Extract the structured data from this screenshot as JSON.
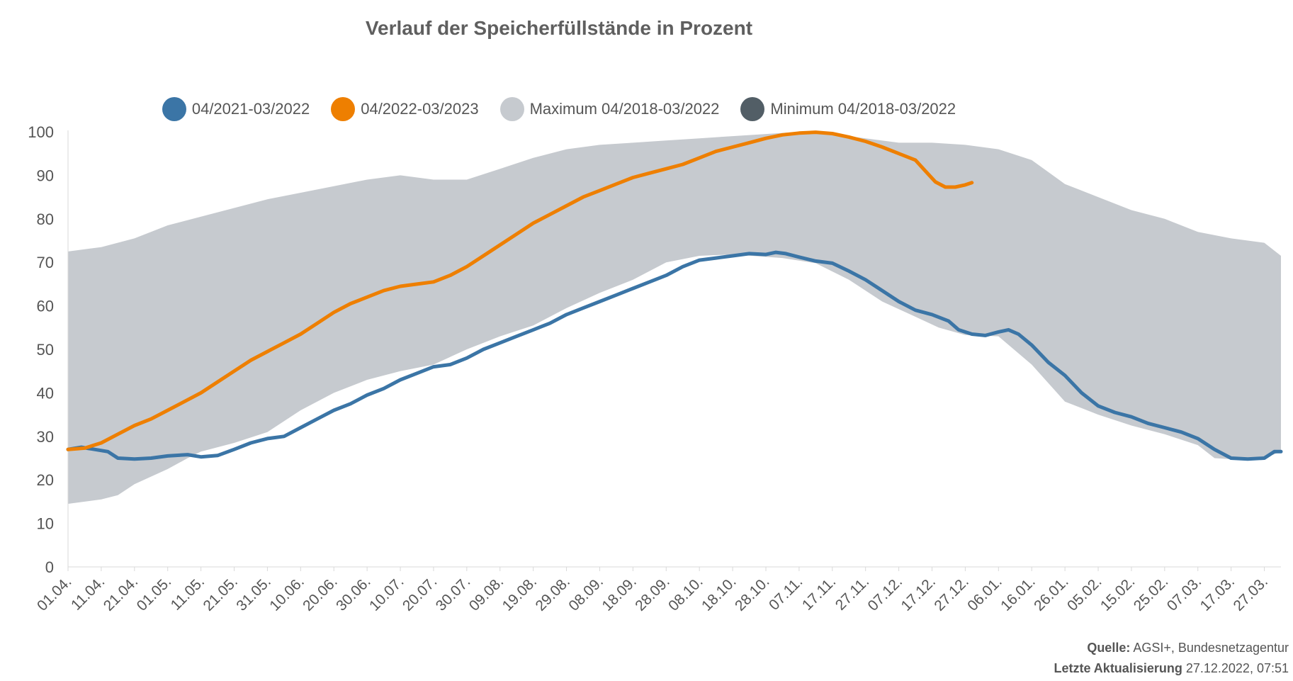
{
  "chart_data": {
    "type": "area",
    "title": "Verlauf der Speicherfüllstände in Prozent",
    "ylim": [
      0,
      100
    ],
    "yticks": [
      "0",
      "10",
      "20",
      "30",
      "40",
      "50",
      "60",
      "70",
      "80",
      "90",
      "100"
    ],
    "xticks": [
      "01.04.",
      "11.04.",
      "21.04.",
      "01.05.",
      "11.05.",
      "21.05.",
      "31.05.",
      "10.06.",
      "20.06.",
      "30.06.",
      "10.07.",
      "20.07.",
      "30.07.",
      "09.08.",
      "19.08.",
      "29.08.",
      "08.09.",
      "18.09.",
      "28.09.",
      "08.10.",
      "18.10.",
      "28.10.",
      "07.11.",
      "17.11.",
      "27.11.",
      "07.12.",
      "17.12.",
      "27.12.",
      "06.01.",
      "16.01.",
      "26.01.",
      "05.02.",
      "15.02.",
      "25.02.",
      "07.03.",
      "17.03.",
      "27.03."
    ],
    "day_of_year_range": [
      0,
      365
    ],
    "legend_placement": "top",
    "grid": false,
    "series": [
      {
        "name": "Maximum 04/2018-03/2022",
        "color": "#c6cacf",
        "kind": "band-upper",
        "points": [
          [
            0,
            72.5
          ],
          [
            10,
            73.5
          ],
          [
            20,
            75.5
          ],
          [
            30,
            78.5
          ],
          [
            40,
            80.5
          ],
          [
            50,
            82.5
          ],
          [
            60,
            84.5
          ],
          [
            70,
            86
          ],
          [
            80,
            87.5
          ],
          [
            90,
            89
          ],
          [
            100,
            90
          ],
          [
            110,
            89
          ],
          [
            120,
            89
          ],
          [
            130,
            91.5
          ],
          [
            140,
            94
          ],
          [
            150,
            96
          ],
          [
            160,
            97
          ],
          [
            170,
            97.5
          ],
          [
            180,
            98
          ],
          [
            190,
            98.5
          ],
          [
            200,
            99
          ],
          [
            210,
            99.5
          ],
          [
            220,
            100
          ],
          [
            230,
            99.5
          ],
          [
            240,
            98.5
          ],
          [
            250,
            97.5
          ],
          [
            260,
            97.5
          ],
          [
            270,
            97
          ],
          [
            280,
            96
          ],
          [
            290,
            93.5
          ],
          [
            300,
            88
          ],
          [
            310,
            85
          ],
          [
            320,
            82
          ],
          [
            330,
            80
          ],
          [
            340,
            77
          ],
          [
            350,
            75.5
          ],
          [
            360,
            74.5
          ],
          [
            365,
            71.5
          ]
        ]
      },
      {
        "name": "Minimum 04/2018-03/2022",
        "color": "#525e66",
        "kind": "band-lower",
        "points": [
          [
            0,
            14.5
          ],
          [
            10,
            15.5
          ],
          [
            15,
            16.5
          ],
          [
            20,
            19
          ],
          [
            30,
            22.5
          ],
          [
            36,
            25
          ],
          [
            40,
            26.5
          ],
          [
            50,
            28.5
          ],
          [
            60,
            31
          ],
          [
            70,
            36
          ],
          [
            80,
            40
          ],
          [
            90,
            43
          ],
          [
            100,
            45
          ],
          [
            110,
            46.5
          ],
          [
            120,
            50
          ],
          [
            130,
            53
          ],
          [
            140,
            55.5
          ],
          [
            150,
            59.5
          ],
          [
            160,
            63
          ],
          [
            170,
            66
          ],
          [
            180,
            70
          ],
          [
            190,
            71.5
          ],
          [
            200,
            71.8
          ],
          [
            215,
            71
          ],
          [
            225,
            69.8
          ],
          [
            235,
            66
          ],
          [
            245,
            61
          ],
          [
            255,
            57.5
          ],
          [
            262,
            55
          ],
          [
            270,
            53.3
          ],
          [
            280,
            53
          ],
          [
            290,
            46.5
          ],
          [
            300,
            38
          ],
          [
            310,
            35
          ],
          [
            320,
            32.5
          ],
          [
            330,
            30.5
          ],
          [
            340,
            28
          ],
          [
            345,
            25
          ],
          [
            355,
            24.5
          ],
          [
            360,
            25
          ],
          [
            365,
            26.5
          ]
        ]
      },
      {
        "name": "04/2021-03/2022",
        "color": "#3b75a6",
        "kind": "line",
        "points": [
          [
            0,
            27
          ],
          [
            4,
            27.5
          ],
          [
            8,
            27
          ],
          [
            12,
            26.5
          ],
          [
            15,
            25
          ],
          [
            20,
            24.8
          ],
          [
            25,
            25
          ],
          [
            30,
            25.5
          ],
          [
            36,
            25.8
          ],
          [
            40,
            25.3
          ],
          [
            45,
            25.6
          ],
          [
            50,
            27
          ],
          [
            55,
            28.5
          ],
          [
            60,
            29.5
          ],
          [
            65,
            30
          ],
          [
            70,
            32
          ],
          [
            75,
            34
          ],
          [
            80,
            36
          ],
          [
            85,
            37.5
          ],
          [
            90,
            39.5
          ],
          [
            95,
            41
          ],
          [
            100,
            43
          ],
          [
            105,
            44.5
          ],
          [
            110,
            46
          ],
          [
            115,
            46.5
          ],
          [
            120,
            48
          ],
          [
            125,
            50
          ],
          [
            130,
            51.5
          ],
          [
            135,
            53
          ],
          [
            140,
            54.5
          ],
          [
            145,
            56
          ],
          [
            150,
            58
          ],
          [
            155,
            59.5
          ],
          [
            160,
            61
          ],
          [
            165,
            62.5
          ],
          [
            170,
            64
          ],
          [
            175,
            65.5
          ],
          [
            180,
            67
          ],
          [
            185,
            69
          ],
          [
            190,
            70.5
          ],
          [
            195,
            71
          ],
          [
            200,
            71.5
          ],
          [
            205,
            72
          ],
          [
            210,
            71.8
          ],
          [
            213,
            72.3
          ],
          [
            216,
            72
          ],
          [
            220,
            71.2
          ],
          [
            225,
            70.3
          ],
          [
            230,
            69.8
          ],
          [
            235,
            68
          ],
          [
            240,
            66
          ],
          [
            245,
            63.5
          ],
          [
            250,
            61
          ],
          [
            255,
            59
          ],
          [
            260,
            58
          ],
          [
            265,
            56.5
          ],
          [
            268,
            54.5
          ],
          [
            272,
            53.5
          ],
          [
            276,
            53.2
          ],
          [
            280,
            54
          ],
          [
            283,
            54.5
          ],
          [
            286,
            53.5
          ],
          [
            290,
            51
          ],
          [
            295,
            47
          ],
          [
            300,
            44
          ],
          [
            305,
            40
          ],
          [
            310,
            37
          ],
          [
            315,
            35.5
          ],
          [
            320,
            34.5
          ],
          [
            325,
            33
          ],
          [
            330,
            32
          ],
          [
            335,
            31
          ],
          [
            340,
            29.5
          ],
          [
            345,
            27
          ],
          [
            350,
            25
          ],
          [
            355,
            24.8
          ],
          [
            360,
            25
          ],
          [
            363,
            26.5
          ],
          [
            365,
            26.5
          ]
        ]
      },
      {
        "name": "04/2022-03/2023",
        "color": "#ee7f00",
        "kind": "line",
        "points": [
          [
            0,
            27
          ],
          [
            5,
            27.3
          ],
          [
            10,
            28.5
          ],
          [
            15,
            30.5
          ],
          [
            20,
            32.5
          ],
          [
            25,
            34
          ],
          [
            30,
            36
          ],
          [
            35,
            38
          ],
          [
            40,
            40
          ],
          [
            45,
            42.5
          ],
          [
            50,
            45
          ],
          [
            55,
            47.5
          ],
          [
            60,
            49.5
          ],
          [
            65,
            51.5
          ],
          [
            70,
            53.5
          ],
          [
            75,
            56
          ],
          [
            80,
            58.5
          ],
          [
            85,
            60.5
          ],
          [
            90,
            62
          ],
          [
            95,
            63.5
          ],
          [
            100,
            64.5
          ],
          [
            105,
            65
          ],
          [
            110,
            65.5
          ],
          [
            115,
            67
          ],
          [
            120,
            69
          ],
          [
            125,
            71.5
          ],
          [
            130,
            74
          ],
          [
            135,
            76.5
          ],
          [
            140,
            79
          ],
          [
            145,
            81
          ],
          [
            150,
            83
          ],
          [
            155,
            85
          ],
          [
            160,
            86.5
          ],
          [
            165,
            88
          ],
          [
            170,
            89.5
          ],
          [
            175,
            90.5
          ],
          [
            180,
            91.5
          ],
          [
            185,
            92.5
          ],
          [
            190,
            94
          ],
          [
            195,
            95.5
          ],
          [
            200,
            96.5
          ],
          [
            205,
            97.5
          ],
          [
            210,
            98.5
          ],
          [
            215,
            99.3
          ],
          [
            220,
            99.7
          ],
          [
            225,
            99.9
          ],
          [
            230,
            99.6
          ],
          [
            235,
            98.8
          ],
          [
            240,
            97.8
          ],
          [
            245,
            96.5
          ],
          [
            250,
            95
          ],
          [
            255,
            93.5
          ],
          [
            258,
            91
          ],
          [
            261,
            88.5
          ],
          [
            264,
            87.3
          ],
          [
            267,
            87.3
          ],
          [
            270,
            87.8
          ],
          [
            272,
            88.3
          ]
        ]
      }
    ]
  },
  "source": {
    "label": "Quelle:",
    "value": "AGSI+, Bundesnetzagentur"
  },
  "updated": {
    "label": "Letzte Aktualisierung",
    "value": "27.12.2022, 07:51"
  }
}
